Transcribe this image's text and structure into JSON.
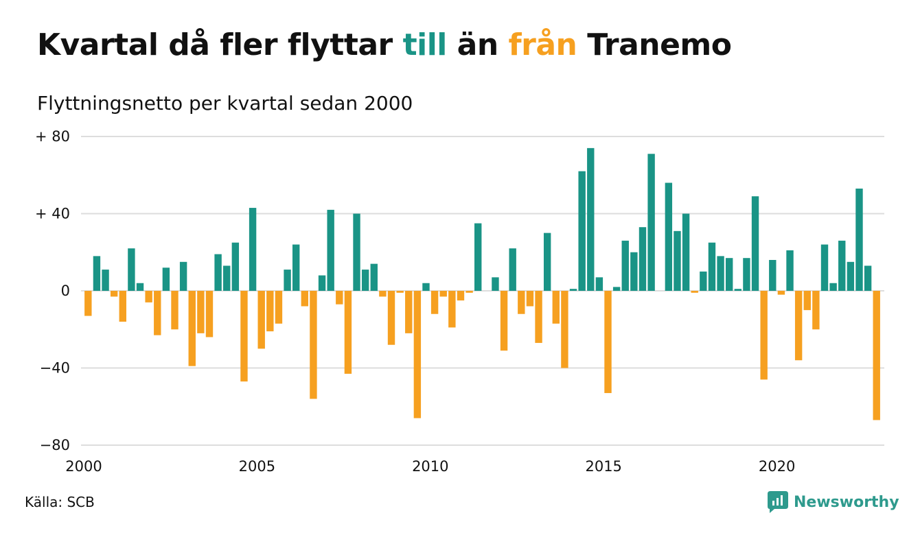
{
  "header": {
    "title_part1": "Kvartal då fler flyttar ",
    "title_till": "till",
    "title_part2": " än ",
    "title_fran": "från",
    "title_part3": " Tranemo",
    "subtitle": "Flyttningsnetto per kvartal sedan 2000"
  },
  "footer": {
    "source": "Källa: SCB",
    "brand": "Newsworthy",
    "brand_icon": "chart-bubble-icon"
  },
  "colors": {
    "positive": "#1a9486",
    "negative": "#f6a020",
    "grid": "#dddddd",
    "text": "#111111",
    "brand": "#2e9a8d"
  },
  "chart_data": {
    "type": "bar",
    "title": "Kvartal då fler flyttar till än från Tranemo",
    "subtitle": "Flyttningsnetto per kvartal sedan 2000",
    "ylim": [
      -80,
      80
    ],
    "yticks": [
      80,
      40,
      0,
      -40,
      -80
    ],
    "ytick_labels": [
      "+ 80",
      "+ 40",
      "0",
      "−40",
      "−80"
    ],
    "x_start": 2000,
    "xticks": [
      "2000",
      "2005",
      "2010",
      "2015",
      "2020"
    ],
    "grid": true,
    "legend": "none",
    "values": [
      -13,
      18,
      11,
      -3,
      -16,
      22,
      4,
      -6,
      -23,
      12,
      -20,
      15,
      -39,
      -22,
      -24,
      19,
      13,
      25,
      -47,
      43,
      -30,
      -21,
      -17,
      11,
      24,
      -8,
      -56,
      8,
      42,
      -7,
      -43,
      40,
      11,
      14,
      -3,
      -28,
      -1,
      -22,
      -66,
      4,
      -12,
      -3,
      -19,
      -5,
      -1,
      35,
      0,
      7,
      -31,
      22,
      -12,
      -8,
      -27,
      30,
      -17,
      -40,
      1,
      62,
      74,
      7,
      -53,
      2,
      26,
      20,
      33,
      71,
      0,
      56,
      31,
      40,
      -1,
      10,
      25,
      18,
      17,
      1,
      17,
      49,
      -46,
      16,
      -2,
      21,
      -36,
      -10,
      -20,
      24,
      4,
      26,
      15,
      53,
      13,
      -67
    ]
  }
}
